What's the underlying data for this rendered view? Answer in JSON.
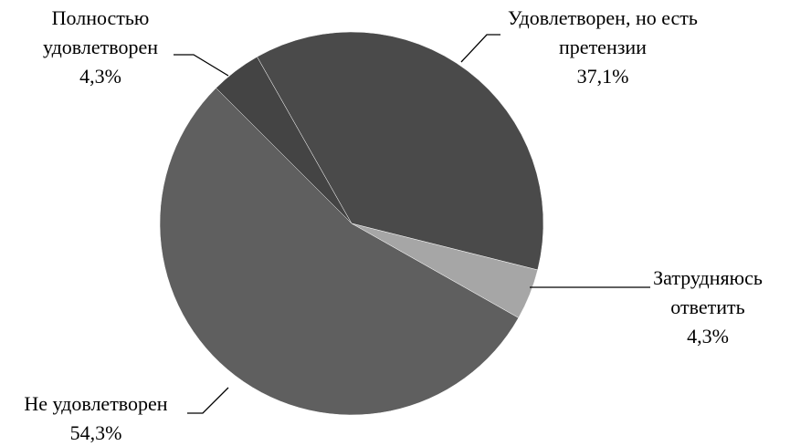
{
  "chart_data": {
    "type": "pie",
    "categories": [
      "Полностью удовлетворен",
      "Удовлетворен, но есть претензии",
      "Затрудняюсь ответить",
      "Не удовлетворен"
    ],
    "values": [
      4.3,
      37.1,
      4.3,
      54.3
    ],
    "value_labels": [
      "4,3%",
      "37,1%",
      "4,3%",
      "54,3%"
    ],
    "colors": [
      "#444444",
      "#4a4a4a",
      "#a6a6a6",
      "#5f5f5f"
    ]
  }
}
